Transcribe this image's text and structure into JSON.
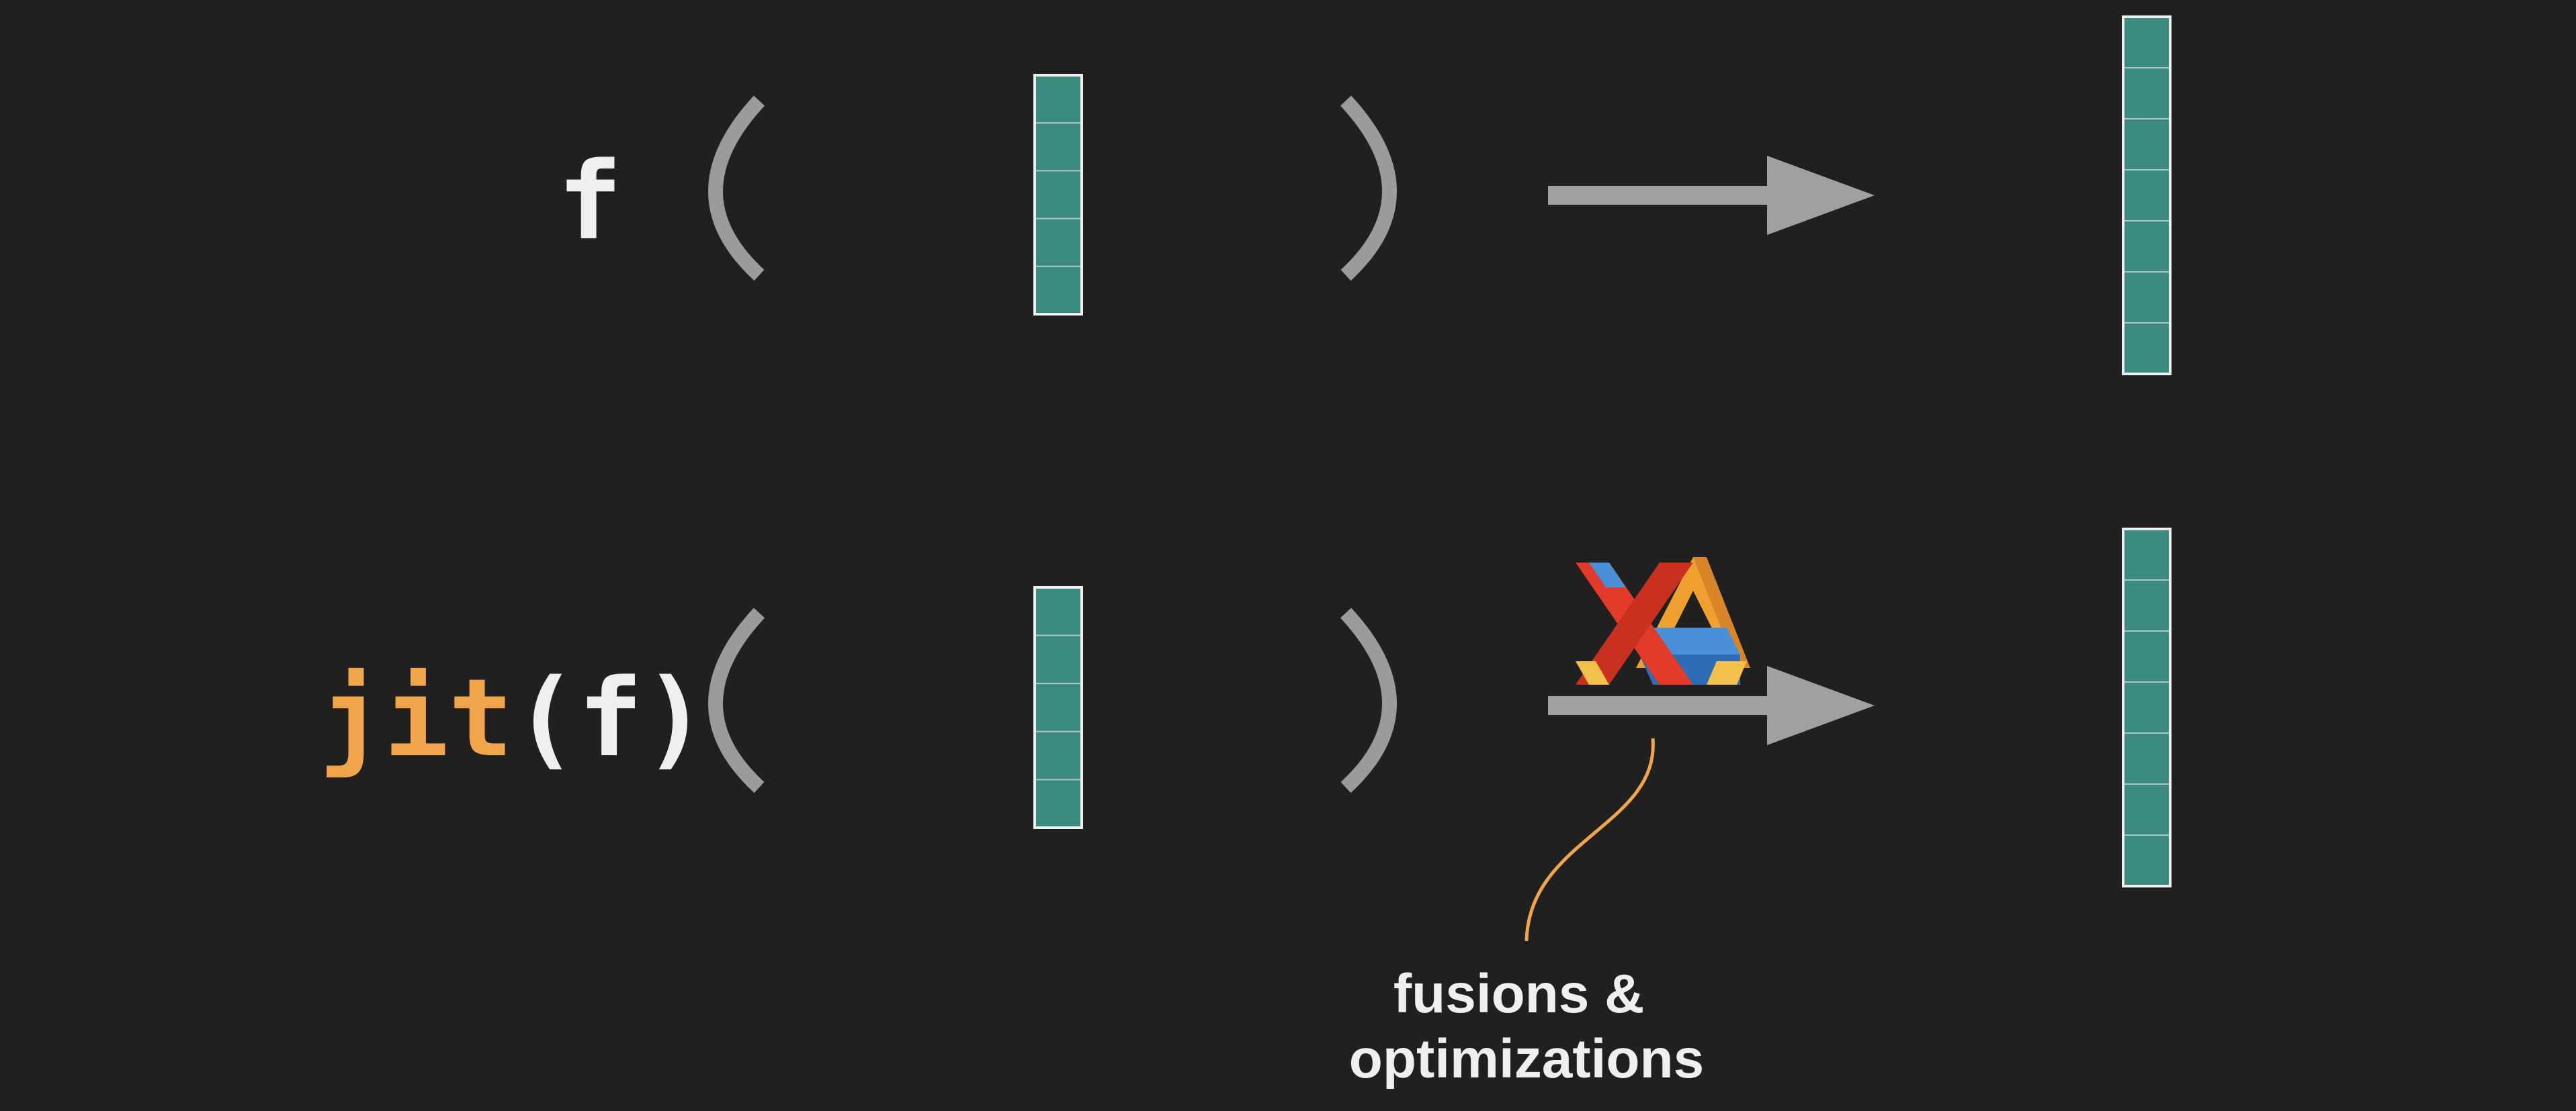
{
  "row1": {
    "func_label": "f"
  },
  "row2": {
    "jit_word": "jit",
    "jit_open_paren": "(",
    "jit_func": "f",
    "jit_close_paren": ")"
  },
  "annotation": {
    "line1": "fusions &",
    "line2": "optimizations"
  },
  "arrays": {
    "input_cells": 5,
    "output_cells": 7
  },
  "colors": {
    "background": "#202020",
    "array_fill": "#3a8a7d",
    "array_border": "#f0f0f0",
    "array_divider": "#a8c9c2",
    "paren": "#9b9b9b",
    "arrow": "#a0a0a0",
    "text": "#efefef",
    "jit_accent": "#f0a54a",
    "annotation_line": "#f0a54a"
  },
  "icons": {
    "xla_logo": "xla-logo-icon"
  }
}
